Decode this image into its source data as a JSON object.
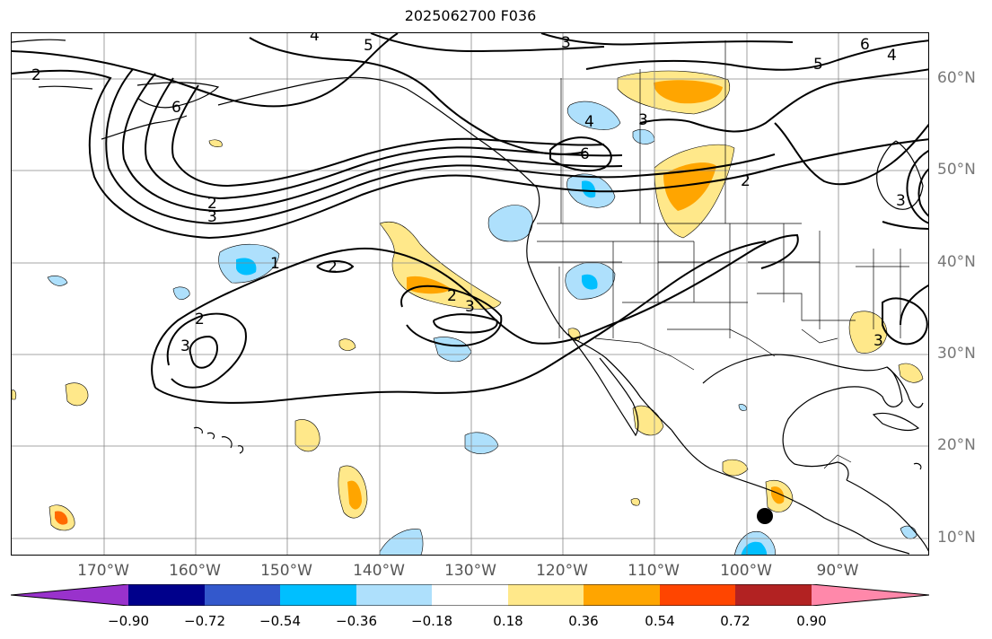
{
  "title": "2025062700 F036",
  "map": {
    "projection": "cylindrical",
    "lon_range": [
      -180,
      -80
    ],
    "lat_range": [
      8,
      65
    ],
    "grid": true,
    "lon_labels": [
      "170°W",
      "160°W",
      "150°W",
      "140°W",
      "130°W",
      "120°W",
      "110°W",
      "100°W",
      "90°W"
    ],
    "lat_labels": [
      "60°N",
      "50°N",
      "40°N",
      "30°N",
      "20°N",
      "10°N"
    ],
    "contour_labels": [
      "4",
      "5",
      "3",
      "2",
      "6",
      "5",
      "6",
      "4",
      "3",
      "4",
      "6",
      "2",
      "3",
      "2",
      "3",
      "1",
      "2",
      "2",
      "3",
      "2",
      "3",
      "3"
    ],
    "marker": {
      "type": "black-dot",
      "lon": -97.5,
      "lat": 12.5
    }
  },
  "colorbar": {
    "ticks": [
      "−0.90",
      "−0.72",
      "−0.54",
      "−0.36",
      "−0.18",
      "0.18",
      "0.36",
      "0.54",
      "0.72",
      "0.90"
    ],
    "colors": [
      "#9932cc",
      "#00008b",
      "#3358cc",
      "#00bfff",
      "#aee0fc",
      "#ffffff",
      "#ffe88a",
      "#ffa500",
      "#ff4500",
      "#b22222",
      "#ff88aa"
    ],
    "extend": "both"
  }
}
